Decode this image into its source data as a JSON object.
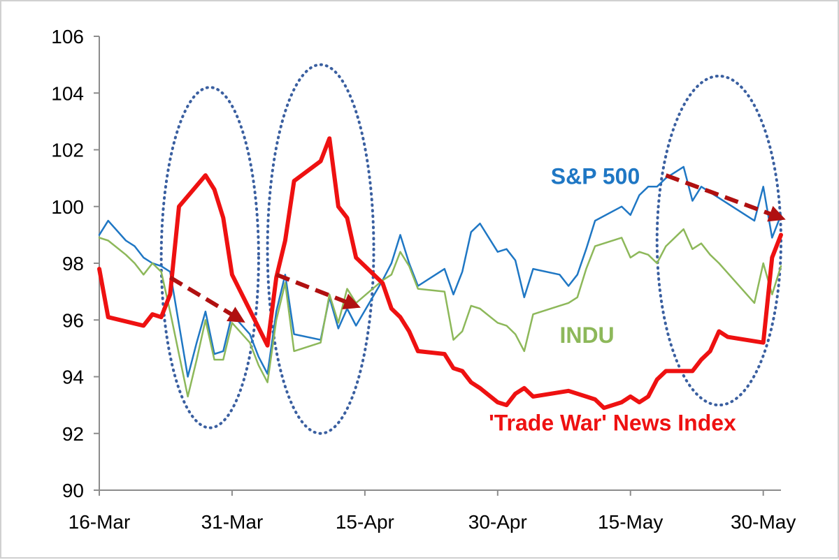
{
  "chart_data": {
    "type": "line",
    "title": "",
    "xlabel": "",
    "ylabel": "",
    "ylim": [
      90,
      106
    ],
    "yticks": [
      90,
      92,
      94,
      96,
      98,
      100,
      102,
      104,
      106
    ],
    "xlim": [
      "2018-03-16",
      "2018-06-01"
    ],
    "xticks": [
      {
        "date": "2018-03-16",
        "label": "16-Mar"
      },
      {
        "date": "2018-03-31",
        "label": "31-Mar"
      },
      {
        "date": "2018-04-15",
        "label": "15-Apr"
      },
      {
        "date": "2018-04-30",
        "label": "30-Apr"
      },
      {
        "date": "2018-05-15",
        "label": "15-May"
      },
      {
        "date": "2018-05-30",
        "label": "30-May"
      }
    ],
    "grid": false,
    "series": [
      {
        "name": "S&P 500",
        "color": "#1f77c4",
        "points": [
          [
            "2018-03-16",
            99.0
          ],
          [
            "2018-03-17",
            99.5
          ],
          [
            "2018-03-19",
            98.8
          ],
          [
            "2018-03-20",
            98.6
          ],
          [
            "2018-03-21",
            98.2
          ],
          [
            "2018-03-22",
            98.0
          ],
          [
            "2018-03-23",
            97.9
          ],
          [
            "2018-03-24",
            97.7
          ],
          [
            "2018-03-26",
            94.0
          ],
          [
            "2018-03-27",
            95.2
          ],
          [
            "2018-03-28",
            96.3
          ],
          [
            "2018-03-29",
            94.8
          ],
          [
            "2018-03-30",
            94.9
          ],
          [
            "2018-03-31",
            96.2
          ],
          [
            "2018-04-02",
            95.5
          ],
          [
            "2018-04-03",
            94.7
          ],
          [
            "2018-04-04",
            94.1
          ],
          [
            "2018-04-05",
            96.3
          ],
          [
            "2018-04-06",
            97.6
          ],
          [
            "2018-04-07",
            95.5
          ],
          [
            "2018-04-10",
            95.3
          ],
          [
            "2018-04-11",
            96.8
          ],
          [
            "2018-04-12",
            95.7
          ],
          [
            "2018-04-13",
            96.4
          ],
          [
            "2018-04-14",
            95.8
          ],
          [
            "2018-04-17",
            97.4
          ],
          [
            "2018-04-18",
            98.0
          ],
          [
            "2018-04-19",
            99.0
          ],
          [
            "2018-04-20",
            98.0
          ],
          [
            "2018-04-21",
            97.2
          ],
          [
            "2018-04-24",
            97.8
          ],
          [
            "2018-04-25",
            96.9
          ],
          [
            "2018-04-26",
            97.7
          ],
          [
            "2018-04-27",
            99.1
          ],
          [
            "2018-04-28",
            99.4
          ],
          [
            "2018-04-30",
            98.4
          ],
          [
            "2018-05-01",
            98.5
          ],
          [
            "2018-05-02",
            98.1
          ],
          [
            "2018-05-03",
            96.8
          ],
          [
            "2018-05-04",
            97.8
          ],
          [
            "2018-05-07",
            97.6
          ],
          [
            "2018-05-08",
            97.2
          ],
          [
            "2018-05-09",
            97.6
          ],
          [
            "2018-05-10",
            98.5
          ],
          [
            "2018-05-11",
            99.5
          ],
          [
            "2018-05-14",
            100.0
          ],
          [
            "2018-05-15",
            99.7
          ],
          [
            "2018-05-16",
            100.4
          ],
          [
            "2018-05-17",
            100.7
          ],
          [
            "2018-05-18",
            100.7
          ],
          [
            "2018-05-19",
            101.0
          ],
          [
            "2018-05-21",
            101.4
          ],
          [
            "2018-05-22",
            100.2
          ],
          [
            "2018-05-23",
            100.7
          ],
          [
            "2018-05-24",
            100.5
          ],
          [
            "2018-05-25",
            100.3
          ],
          [
            "2018-05-29",
            99.5
          ],
          [
            "2018-05-30",
            100.7
          ],
          [
            "2018-05-31",
            98.9
          ],
          [
            "2018-06-01",
            99.7
          ]
        ]
      },
      {
        "name": "INDU",
        "color": "#8db85a",
        "points": [
          [
            "2018-03-16",
            98.9
          ],
          [
            "2018-03-17",
            98.8
          ],
          [
            "2018-03-19",
            98.3
          ],
          [
            "2018-03-20",
            98.0
          ],
          [
            "2018-03-21",
            97.6
          ],
          [
            "2018-03-22",
            98.0
          ],
          [
            "2018-03-23",
            97.7
          ],
          [
            "2018-03-24",
            96.3
          ],
          [
            "2018-03-26",
            93.3
          ],
          [
            "2018-03-27",
            94.6
          ],
          [
            "2018-03-28",
            96.0
          ],
          [
            "2018-03-29",
            94.6
          ],
          [
            "2018-03-30",
            94.6
          ],
          [
            "2018-03-31",
            95.9
          ],
          [
            "2018-04-02",
            95.2
          ],
          [
            "2018-04-03",
            94.4
          ],
          [
            "2018-04-04",
            93.8
          ],
          [
            "2018-04-05",
            96.0
          ],
          [
            "2018-04-06",
            97.3
          ],
          [
            "2018-04-07",
            94.9
          ],
          [
            "2018-04-10",
            95.2
          ],
          [
            "2018-04-11",
            96.9
          ],
          [
            "2018-04-12",
            95.9
          ],
          [
            "2018-04-13",
            97.1
          ],
          [
            "2018-04-14",
            96.6
          ],
          [
            "2018-04-17",
            97.4
          ],
          [
            "2018-04-18",
            97.6
          ],
          [
            "2018-04-19",
            98.4
          ],
          [
            "2018-04-20",
            97.9
          ],
          [
            "2018-04-21",
            97.1
          ],
          [
            "2018-04-24",
            97.0
          ],
          [
            "2018-04-25",
            95.3
          ],
          [
            "2018-04-26",
            95.6
          ],
          [
            "2018-04-27",
            96.5
          ],
          [
            "2018-04-28",
            96.4
          ],
          [
            "2018-04-30",
            95.9
          ],
          [
            "2018-05-01",
            95.8
          ],
          [
            "2018-05-02",
            95.5
          ],
          [
            "2018-05-03",
            94.9
          ],
          [
            "2018-05-04",
            96.2
          ],
          [
            "2018-05-07",
            96.5
          ],
          [
            "2018-05-08",
            96.6
          ],
          [
            "2018-05-09",
            96.8
          ],
          [
            "2018-05-10",
            97.8
          ],
          [
            "2018-05-11",
            98.6
          ],
          [
            "2018-05-14",
            98.9
          ],
          [
            "2018-05-15",
            98.2
          ],
          [
            "2018-05-16",
            98.4
          ],
          [
            "2018-05-17",
            98.3
          ],
          [
            "2018-05-18",
            98.0
          ],
          [
            "2018-05-19",
            98.6
          ],
          [
            "2018-05-21",
            99.2
          ],
          [
            "2018-05-22",
            98.5
          ],
          [
            "2018-05-23",
            98.7
          ],
          [
            "2018-05-24",
            98.3
          ],
          [
            "2018-05-25",
            98.0
          ],
          [
            "2018-05-29",
            96.6
          ],
          [
            "2018-05-30",
            98.0
          ],
          [
            "2018-05-31",
            96.9
          ],
          [
            "2018-06-01",
            97.9
          ]
        ]
      },
      {
        "name": "'Trade War' News Index",
        "color": "#ee1111",
        "points": [
          [
            "2018-03-16",
            97.8
          ],
          [
            "2018-03-17",
            96.1
          ],
          [
            "2018-03-21",
            95.8
          ],
          [
            "2018-03-22",
            96.2
          ],
          [
            "2018-03-23",
            96.1
          ],
          [
            "2018-03-24",
            96.9
          ],
          [
            "2018-03-25",
            100.0
          ],
          [
            "2018-03-28",
            101.1
          ],
          [
            "2018-03-29",
            100.6
          ],
          [
            "2018-03-30",
            99.6
          ],
          [
            "2018-03-31",
            97.6
          ],
          [
            "2018-04-04",
            95.1
          ],
          [
            "2018-04-05",
            97.5
          ],
          [
            "2018-04-06",
            98.8
          ],
          [
            "2018-04-07",
            100.9
          ],
          [
            "2018-04-10",
            101.6
          ],
          [
            "2018-04-11",
            102.4
          ],
          [
            "2018-04-12",
            100.0
          ],
          [
            "2018-04-13",
            99.6
          ],
          [
            "2018-04-14",
            98.2
          ],
          [
            "2018-04-17",
            97.3
          ],
          [
            "2018-04-18",
            96.4
          ],
          [
            "2018-04-19",
            96.1
          ],
          [
            "2018-04-20",
            95.6
          ],
          [
            "2018-04-21",
            94.9
          ],
          [
            "2018-04-24",
            94.8
          ],
          [
            "2018-04-25",
            94.3
          ],
          [
            "2018-04-26",
            94.2
          ],
          [
            "2018-04-27",
            93.8
          ],
          [
            "2018-04-28",
            93.6
          ],
          [
            "2018-04-30",
            93.1
          ],
          [
            "2018-05-01",
            93.0
          ],
          [
            "2018-05-02",
            93.4
          ],
          [
            "2018-05-03",
            93.6
          ],
          [
            "2018-05-04",
            93.3
          ],
          [
            "2018-05-08",
            93.5
          ],
          [
            "2018-05-10",
            93.3
          ],
          [
            "2018-05-11",
            93.2
          ],
          [
            "2018-05-12",
            92.9
          ],
          [
            "2018-05-14",
            93.1
          ],
          [
            "2018-05-15",
            93.3
          ],
          [
            "2018-05-16",
            93.1
          ],
          [
            "2018-05-17",
            93.3
          ],
          [
            "2018-05-18",
            93.9
          ],
          [
            "2018-05-19",
            94.2
          ],
          [
            "2018-05-22",
            94.2
          ],
          [
            "2018-05-23",
            94.6
          ],
          [
            "2018-05-24",
            94.9
          ],
          [
            "2018-05-25",
            95.6
          ],
          [
            "2018-05-26",
            95.4
          ],
          [
            "2018-05-30",
            95.2
          ],
          [
            "2018-05-31",
            98.2
          ],
          [
            "2018-06-01",
            99.0
          ]
        ]
      }
    ],
    "annotations": {
      "series_labels": [
        {
          "text": "S&P 500",
          "color": "#1f77c4",
          "date": "2018-05-06",
          "value": 100.8
        },
        {
          "text": "INDU",
          "color": "#8db85a",
          "date": "2018-05-07",
          "value": 95.2
        },
        {
          "text": "'Trade War' News Index",
          "color": "#ee1111",
          "date": "2018-04-29",
          "value": 92.1
        }
      ],
      "highlight_ellipses": [
        {
          "from": "2018-03-23",
          "to": "2018-04-03",
          "ymin": 92.2,
          "ymax": 104.2,
          "color": "#3a5fa0"
        },
        {
          "from": "2018-04-04",
          "to": "2018-04-16",
          "ymin": 92.0,
          "ymax": 105.0,
          "color": "#3a5fa0"
        },
        {
          "from": "2018-05-18",
          "to": "2018-06-01",
          "ymin": 93.0,
          "ymax": 104.6,
          "color": "#3a5fa0"
        }
      ],
      "trend_arrows": [
        {
          "from": [
            "2018-03-24",
            97.5
          ],
          "to": [
            "2018-04-01",
            96.0
          ],
          "color": "#b01010"
        },
        {
          "from": [
            "2018-04-05",
            97.6
          ],
          "to": [
            "2018-04-14",
            96.5
          ],
          "color": "#b01010"
        },
        {
          "from": [
            "2018-05-19",
            101.1
          ],
          "to": [
            "2018-06-01",
            99.6
          ],
          "color": "#b01010"
        }
      ]
    }
  }
}
